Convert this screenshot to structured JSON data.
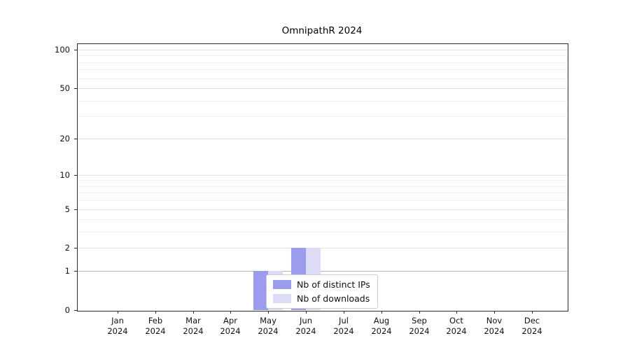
{
  "chart_data": {
    "type": "bar",
    "title": "OmnipathR 2024",
    "categories": [
      "Jan 2024",
      "Feb 2024",
      "Mar 2024",
      "Apr 2024",
      "May 2024",
      "Jun 2024",
      "Jul 2024",
      "Aug 2024",
      "Sep 2024",
      "Oct 2024",
      "Nov 2024",
      "Dec 2024"
    ],
    "series": [
      {
        "name": "Nb of distinct IPs",
        "color": "#9c9cee",
        "values": [
          0,
          0,
          0,
          0,
          1,
          2,
          0,
          0,
          0,
          0,
          0,
          0
        ]
      },
      {
        "name": "Nb of downloads",
        "color": "#dcdcf7",
        "values": [
          0,
          0,
          0,
          0,
          1,
          2,
          0,
          0,
          0,
          0,
          0,
          0
        ]
      }
    ],
    "yscale": "log1p",
    "yticks": [
      0,
      1,
      2,
      5,
      10,
      20,
      50,
      100
    ],
    "ylim": [
      0,
      110
    ],
    "xlabel": "",
    "ylabel": "",
    "grid": "horizontal",
    "legend_position": "lower center"
  }
}
